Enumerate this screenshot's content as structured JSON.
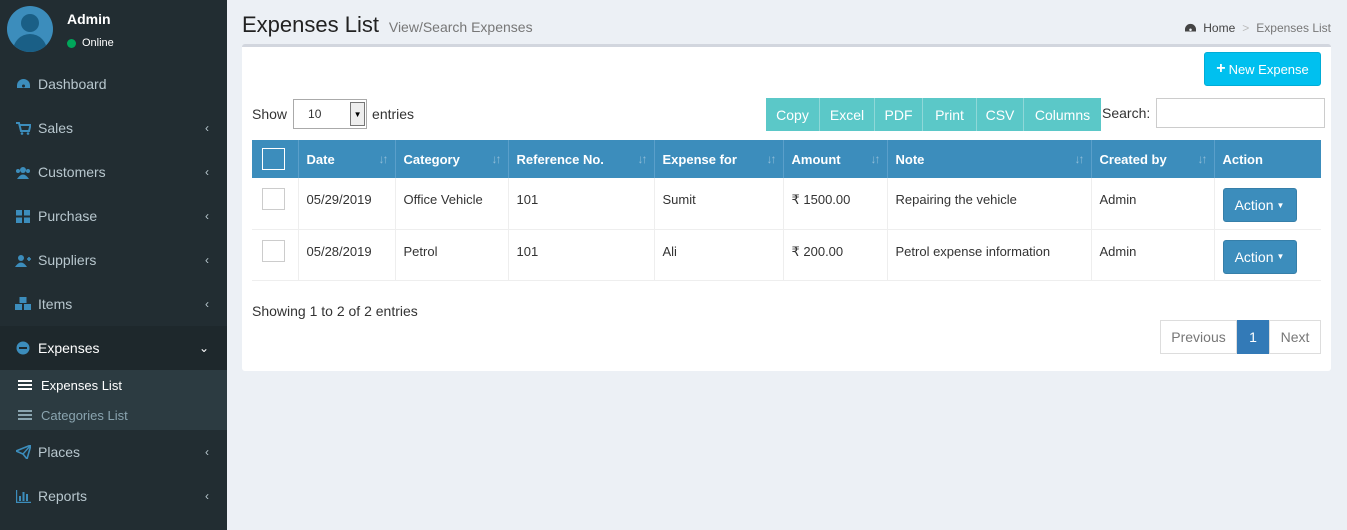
{
  "user": {
    "name": "Admin",
    "status": "Online"
  },
  "sidebar": {
    "items": [
      {
        "label": "Dashboard",
        "icon": "dashboard-icon"
      },
      {
        "label": "Sales",
        "icon": "cart-icon"
      },
      {
        "label": "Customers",
        "icon": "users-icon"
      },
      {
        "label": "Purchase",
        "icon": "grid-icon"
      },
      {
        "label": "Suppliers",
        "icon": "user-plus-icon"
      },
      {
        "label": "Items",
        "icon": "cubes-icon"
      },
      {
        "label": "Expenses",
        "icon": "minus-circle-icon"
      },
      {
        "label": "Places",
        "icon": "paper-plane-icon"
      },
      {
        "label": "Reports",
        "icon": "bar-chart-icon"
      }
    ],
    "expenses_sub": [
      {
        "label": "Expenses List"
      },
      {
        "label": "Categories List"
      }
    ]
  },
  "header": {
    "title": "Expenses List",
    "subtitle": "View/Search Expenses",
    "breadcrumb_home": "Home",
    "breadcrumb_sep": ">",
    "breadcrumb_current": "Expenses List"
  },
  "toolbar": {
    "new_expense": "New Expense",
    "show_label": "Show",
    "entries_label": "entries",
    "page_length": "10",
    "export_buttons": [
      "Copy",
      "Excel",
      "PDF",
      "Print",
      "CSV",
      "Columns"
    ],
    "search_label": "Search:"
  },
  "table": {
    "columns": [
      "Date",
      "Category",
      "Reference No.",
      "Expense for",
      "Amount",
      "Note",
      "Created by",
      "Action"
    ],
    "rows": [
      {
        "date": "05/29/2019",
        "category": "Office Vehicle",
        "reference": "101",
        "expense_for": "Sumit",
        "amount": "₹ 1500.00",
        "note": "Repairing the vehicle",
        "created_by": "Admin",
        "action": "Action"
      },
      {
        "date": "05/28/2019",
        "category": "Petrol",
        "reference": "101",
        "expense_for": "Ali",
        "amount": "₹ 200.00",
        "note": "Petrol expense information",
        "created_by": "Admin",
        "action": "Action"
      }
    ]
  },
  "footer": {
    "info": "Showing 1 to 2 of 2 entries",
    "prev": "Previous",
    "page": "1",
    "next": "Next"
  },
  "colors": {
    "sidebar": "#222d32",
    "primary": "#3c8dbc",
    "info": "#00c0ef",
    "dt_button": "#5bc8c8"
  }
}
